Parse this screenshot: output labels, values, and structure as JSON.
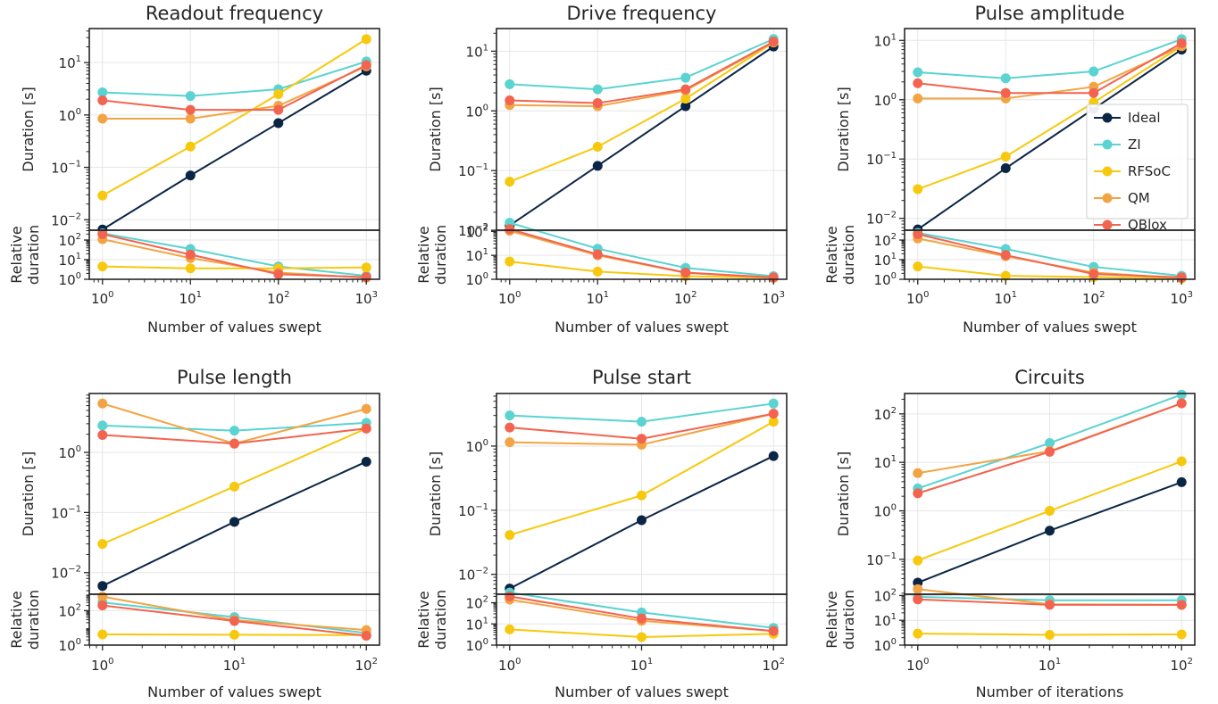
{
  "figure": {
    "legend": {
      "position": "in Pulse amplitude panel, right",
      "entries": [
        "Ideal",
        "ZI",
        "RFSoC",
        "QM",
        "QBlox"
      ]
    }
  },
  "colors": {
    "Ideal": "#0b2545",
    "ZI": "#5ad3d1",
    "RFSoC": "#f6c90e",
    "QM": "#f2a444",
    "QBlox": "#f2644f"
  },
  "chart_data": [
    {
      "type": "line",
      "title": "Readout frequency",
      "xlabel": "Number of values swept",
      "ylabel": "Duration [s]",
      "ylabel_bottom": [
        "Relative",
        "duration"
      ],
      "xscale": "log",
      "yscale": "log",
      "x": [
        1,
        10,
        100,
        1000
      ],
      "xticks": [
        "0",
        "1",
        "2",
        "3"
      ],
      "grid": true,
      "top": {
        "yticks": [
          "−2",
          "−1",
          "0",
          "1"
        ],
        "series": [
          {
            "name": "Ideal",
            "values": [
              0.0065,
              0.07,
              0.7,
              7
            ]
          },
          {
            "name": "ZI",
            "values": [
              2.7,
              2.3,
              3.1,
              10.5
            ]
          },
          {
            "name": "RFSoC",
            "values": [
              0.029,
              0.25,
              2.5,
              28
            ]
          },
          {
            "name": "QM",
            "values": [
              0.85,
              0.85,
              1.5,
              8.5
            ]
          },
          {
            "name": "QBlox",
            "values": [
              1.9,
              1.25,
              1.25,
              9
            ]
          }
        ]
      },
      "bottom": {
        "yticks": [
          "0",
          "1",
          "2"
        ],
        "series": [
          {
            "name": "ZI",
            "values": [
              220,
              35,
              4.5,
              1.5
            ]
          },
          {
            "name": "RFSoC",
            "values": [
              4.5,
              3.6,
              3.6,
              4.0
            ]
          },
          {
            "name": "QM",
            "values": [
              110,
              12,
              2.2,
              1.2
            ]
          },
          {
            "name": "QBlox",
            "values": [
              200,
              18,
              1.8,
              1.3
            ]
          }
        ]
      }
    },
    {
      "type": "line",
      "title": "Drive frequency",
      "xlabel": "Number of values swept",
      "ylabel": "Duration [s]",
      "ylabel_bottom": [
        "Relative",
        "duration"
      ],
      "xscale": "log",
      "yscale": "log",
      "x": [
        1,
        10,
        100,
        1000
      ],
      "xticks": [
        "0",
        "1",
        "2",
        "3"
      ],
      "grid": true,
      "top": {
        "yticks": [
          "−2",
          "−1",
          "0",
          "1"
        ],
        "series": [
          {
            "name": "Ideal",
            "values": [
              0.012,
              0.12,
              1.2,
              12
            ]
          },
          {
            "name": "ZI",
            "values": [
              2.8,
              2.3,
              3.6,
              16
            ]
          },
          {
            "name": "RFSoC",
            "values": [
              0.065,
              0.25,
              1.6,
              14
            ]
          },
          {
            "name": "QM",
            "values": [
              1.25,
              1.2,
              2.2,
              14
            ]
          },
          {
            "name": "QBlox",
            "values": [
              1.5,
              1.35,
              2.3,
              14.5
            ]
          }
        ]
      },
      "bottom": {
        "yticks": [
          "0",
          "1",
          "2"
        ],
        "series": [
          {
            "name": "ZI",
            "values": [
              230,
              19,
              3,
              1.35
            ]
          },
          {
            "name": "RFSoC",
            "values": [
              5.5,
              2.1,
              1.35,
              1.15
            ]
          },
          {
            "name": "QM",
            "values": [
              105,
              10,
              1.85,
              1.15
            ]
          },
          {
            "name": "QBlox",
            "values": [
              125,
              11,
              1.9,
              1.2
            ]
          }
        ]
      }
    },
    {
      "type": "line",
      "title": "Pulse amplitude",
      "xlabel": "Number of values swept",
      "ylabel": "Duration [s]",
      "ylabel_bottom": [
        "Relative",
        "duration"
      ],
      "xscale": "log",
      "yscale": "log",
      "x": [
        1,
        10,
        100,
        1000
      ],
      "xticks": [
        "0",
        "1",
        "2",
        "3"
      ],
      "grid": true,
      "top": {
        "yticks": [
          "−2",
          "−1",
          "0",
          "1"
        ],
        "series": [
          {
            "name": "Ideal",
            "values": [
              0.0065,
              0.07,
              0.7,
              7
            ]
          },
          {
            "name": "ZI",
            "values": [
              2.9,
              2.3,
              3.0,
              10.5
            ]
          },
          {
            "name": "RFSoC",
            "values": [
              0.031,
              0.11,
              0.9,
              8
            ]
          },
          {
            "name": "QM",
            "values": [
              1.05,
              1.05,
              1.65,
              8
            ]
          },
          {
            "name": "QBlox",
            "values": [
              1.9,
              1.3,
              1.3,
              9
            ]
          }
        ]
      },
      "bottom": {
        "yticks": [
          "0",
          "1",
          "2"
        ],
        "series": [
          {
            "name": "ZI",
            "values": [
              230,
              35,
              4.3,
              1.5
            ]
          },
          {
            "name": "RFSoC",
            "values": [
              4.5,
              1.5,
              1.3,
              1.1
            ]
          },
          {
            "name": "QM",
            "values": [
              120,
              15,
              2.2,
              1.15
            ]
          },
          {
            "name": "QBlox",
            "values": [
              200,
              17,
              1.85,
              1.25
            ]
          }
        ]
      }
    },
    {
      "type": "line",
      "title": "Pulse length",
      "xlabel": "Number of values swept",
      "ylabel": "Duration [s]",
      "ylabel_bottom": [
        "Relative",
        "duration"
      ],
      "xscale": "log",
      "yscale": "log",
      "x": [
        1,
        10,
        100
      ],
      "xticks": [
        "0",
        "1",
        "2"
      ],
      "grid": true,
      "top": {
        "yticks": [
          "−2",
          "−1",
          "0"
        ],
        "series": [
          {
            "name": "Ideal",
            "values": [
              0.006,
              0.07,
              0.7
            ]
          },
          {
            "name": "ZI",
            "values": [
              2.8,
              2.3,
              3.1
            ]
          },
          {
            "name": "RFSoC",
            "values": [
              0.03,
              0.27,
              2.5
            ]
          },
          {
            "name": "QM",
            "values": [
              6.5,
              1.4,
              5.3
            ]
          },
          {
            "name": "QBlox",
            "values": [
              1.95,
              1.4,
              2.5
            ]
          }
        ]
      },
      "bottom": {
        "yticks": [
          "0",
          "2"
        ],
        "series": [
          {
            "name": "ZI",
            "values": [
              300,
              42,
              5
            ]
          },
          {
            "name": "RFSoC",
            "values": [
              4.2,
              4.0,
              3.8
            ]
          },
          {
            "name": "QM",
            "values": [
              650,
              28,
              7.5
            ]
          },
          {
            "name": "QBlox",
            "values": [
              200,
              25,
              3.5
            ]
          }
        ]
      }
    },
    {
      "type": "line",
      "title": "Pulse start",
      "xlabel": "Number of values swept",
      "ylabel": "Duration [s]",
      "ylabel_bottom": [
        "Relative",
        "duration"
      ],
      "xscale": "log",
      "yscale": "log",
      "x": [
        1,
        10,
        100
      ],
      "xticks": [
        "0",
        "1",
        "2"
      ],
      "grid": true,
      "top": {
        "yticks": [
          "−2",
          "−1",
          "0"
        ],
        "series": [
          {
            "name": "Ideal",
            "values": [
              0.006,
              0.07,
              0.7
            ]
          },
          {
            "name": "ZI",
            "values": [
              3.0,
              2.4,
              4.6
            ]
          },
          {
            "name": "RFSoC",
            "values": [
              0.041,
              0.17,
              2.4
            ]
          },
          {
            "name": "QM",
            "values": [
              1.15,
              1.05,
              3.2
            ]
          },
          {
            "name": "QBlox",
            "values": [
              1.95,
              1.3,
              3.2
            ]
          }
        ]
      },
      "bottom": {
        "yticks": [
          "0",
          "1",
          "2"
        ],
        "series": [
          {
            "name": "ZI",
            "values": [
              300,
              35,
              6.5
            ]
          },
          {
            "name": "RFSoC",
            "values": [
              5.5,
              2.4,
              3.4
            ]
          },
          {
            "name": "QM",
            "values": [
              140,
              14,
              4.6
            ]
          },
          {
            "name": "QBlox",
            "values": [
              200,
              18,
              4.6
            ]
          }
        ]
      }
    },
    {
      "type": "line",
      "title": "Circuits",
      "xlabel": "Number of iterations",
      "ylabel": "Duration [s]",
      "ylabel_bottom": [
        "Relative",
        "duration"
      ],
      "xscale": "log",
      "yscale": "log",
      "x": [
        1,
        10,
        100
      ],
      "xticks": [
        "0",
        "1",
        "2"
      ],
      "grid": true,
      "top": {
        "yticks": [
          "−1",
          "0",
          "1",
          "2"
        ],
        "series": [
          {
            "name": "Ideal",
            "values": [
              0.033,
              0.39,
              3.9
            ]
          },
          {
            "name": "ZI",
            "values": [
              2.9,
              25,
              250
            ]
          },
          {
            "name": "RFSoC",
            "values": [
              0.095,
              1.0,
              10.5
            ]
          },
          {
            "name": "QM",
            "values": [
              6.0,
              17,
              165
            ]
          },
          {
            "name": "QBlox",
            "values": [
              2.3,
              16.5,
              165
            ]
          }
        ]
      },
      "bottom": {
        "yticks": [
          "0",
          "1",
          "2"
        ],
        "series": [
          {
            "name": "ZI",
            "values": [
              88,
              64,
              64
            ]
          },
          {
            "name": "RFSoC",
            "values": [
              2.9,
              2.6,
              2.7
            ]
          },
          {
            "name": "QM",
            "values": [
              180,
              44,
              42
            ]
          },
          {
            "name": "QBlox",
            "values": [
              70,
              42,
              42
            ]
          }
        ]
      }
    }
  ]
}
